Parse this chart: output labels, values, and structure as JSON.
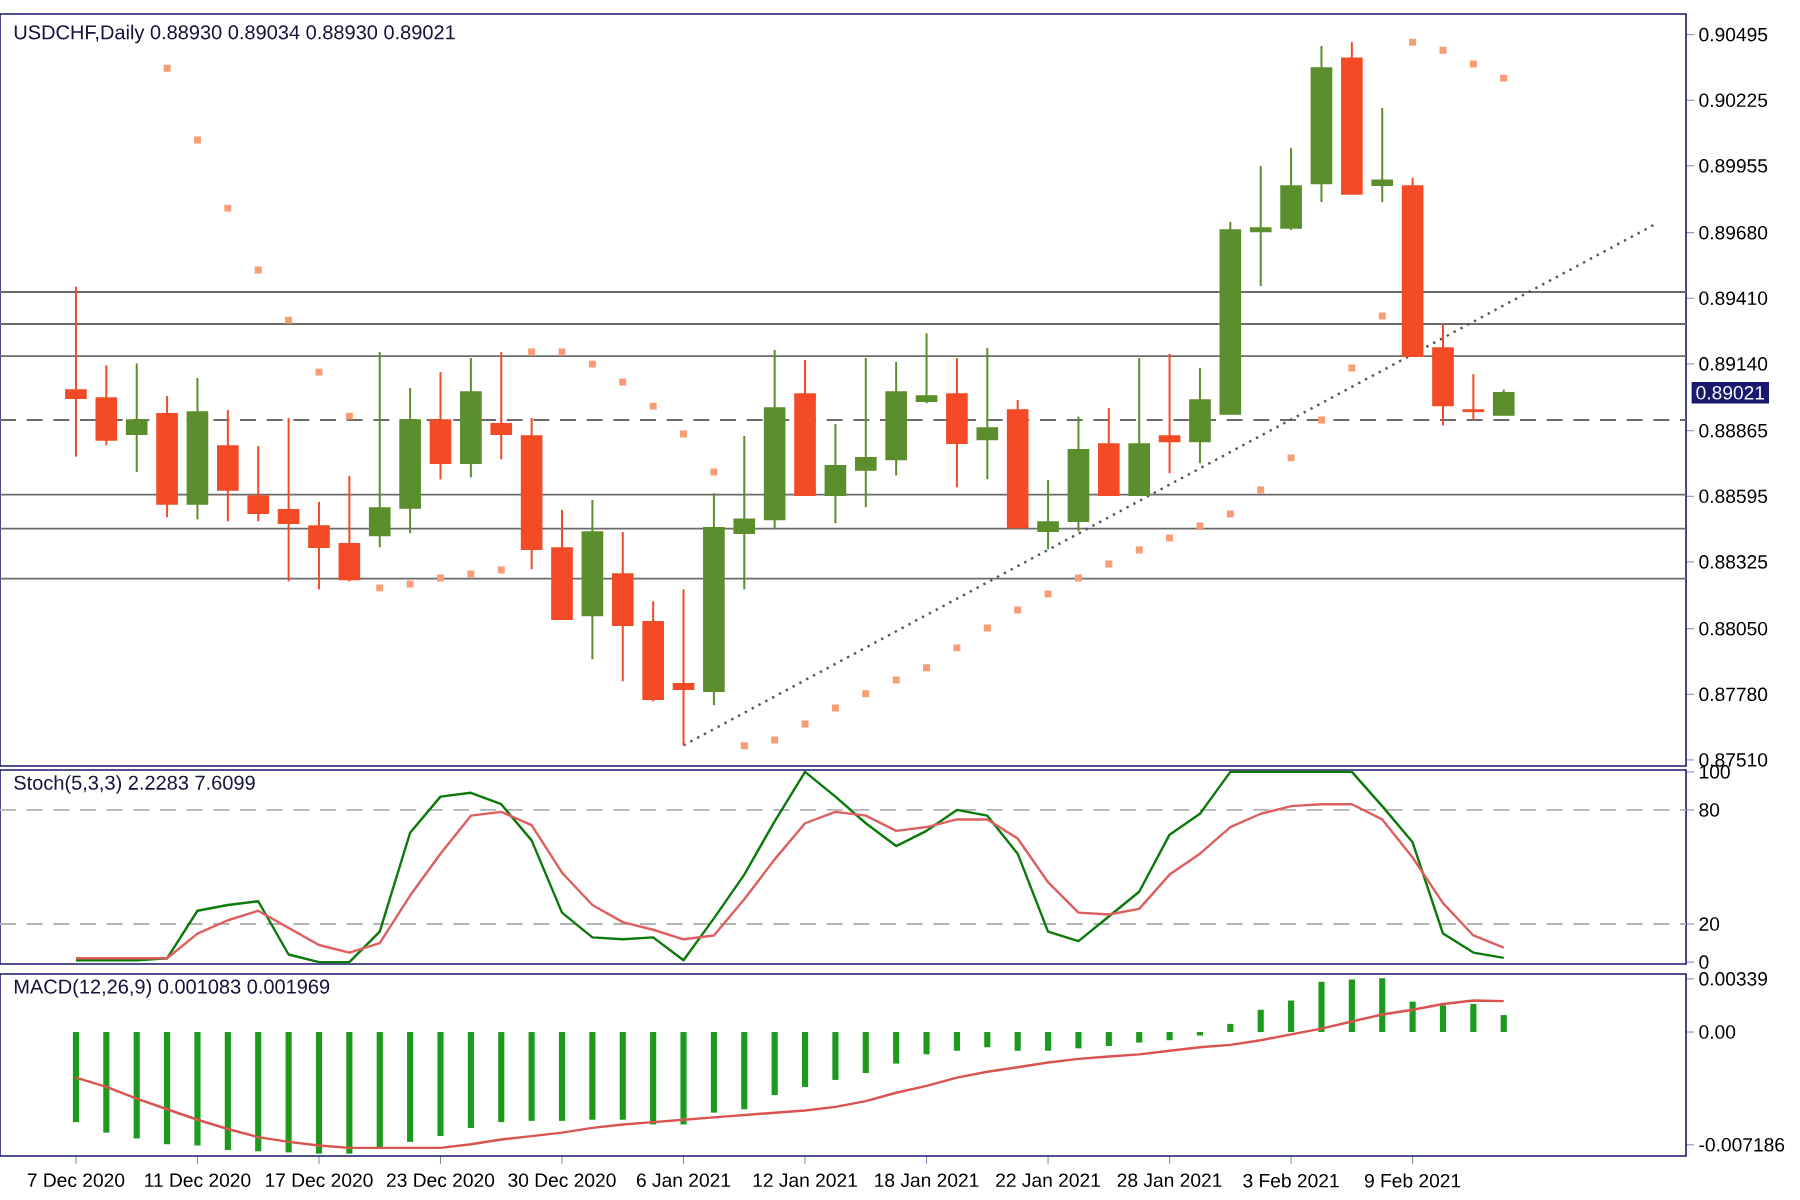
{
  "chart_data": [
    {
      "type": "candlestick",
      "title": "USDCHF,Daily  0.88930 0.89034 0.88930 0.89021",
      "categories": [
        null,
        null,
        null,
        null,
        null,
        null,
        null,
        null,
        null,
        null,
        null,
        null,
        null,
        null,
        null,
        null,
        null,
        null,
        null,
        null,
        null,
        null,
        null,
        null,
        null,
        null,
        null,
        null,
        null,
        null,
        null,
        null,
        null,
        null,
        null,
        null,
        null,
        null,
        null,
        null,
        null,
        null,
        null,
        null,
        null,
        null,
        null,
        null,
        null,
        null,
        null,
        null,
        null
      ],
      "ohlc": [
        [
          0.89032,
          0.89458,
          0.88758,
          0.88999
        ],
        [
          0.88999,
          0.89134,
          0.88805,
          0.88827
        ],
        [
          0.88851,
          0.89142,
          0.88695,
          0.88909
        ],
        [
          0.88934,
          0.89008,
          0.88509,
          0.88563
        ],
        [
          0.88563,
          0.89082,
          0.885,
          0.88942
        ],
        [
          0.88802,
          0.8895,
          0.88492,
          0.88621
        ],
        [
          0.88596,
          0.88802,
          0.88492,
          0.88525
        ],
        [
          0.88539,
          0.88917,
          0.88245,
          0.88484
        ],
        [
          0.88473,
          0.88572,
          0.88212,
          0.88385
        ],
        [
          0.88399,
          0.88679,
          0.88245,
          0.88253
        ],
        [
          0.88434,
          0.89189,
          0.88385,
          0.88547
        ],
        [
          0.88547,
          0.89041,
          0.88443,
          0.88909
        ],
        [
          0.88909,
          0.89106,
          0.88665,
          0.88731
        ],
        [
          0.88731,
          0.89164,
          0.88673,
          0.89024
        ],
        [
          0.88893,
          0.89189,
          0.88747,
          0.88851
        ],
        [
          0.88843,
          0.88917,
          0.88295,
          0.88377
        ],
        [
          0.88382,
          0.88539,
          0.88089,
          0.88089
        ],
        [
          0.88105,
          0.8858,
          0.87924,
          0.88448
        ],
        [
          0.88275,
          0.88448,
          0.87834,
          0.88064
        ],
        [
          0.88078,
          0.88163,
          0.87751,
          0.8776
        ],
        [
          0.87823,
          0.88212,
          0.8757,
          0.87801
        ],
        [
          0.87793,
          0.88607,
          0.87735,
          0.88465
        ],
        [
          0.88443,
          0.88843,
          0.88212,
          0.885
        ],
        [
          0.885,
          0.89197,
          0.88459,
          0.88958
        ],
        [
          0.89016,
          0.89156,
          0.88599,
          0.88599
        ],
        [
          0.88599,
          0.88893,
          0.88484,
          0.8872
        ],
        [
          0.88703,
          0.89164,
          0.8855,
          0.88753
        ],
        [
          0.88747,
          0.89148,
          0.88681,
          0.89024
        ],
        [
          0.88986,
          0.89266,
          0.88978,
          0.89008
        ],
        [
          0.89016,
          0.89164,
          0.88632,
          0.88813
        ],
        [
          0.88829,
          0.89205,
          0.88665,
          0.88876
        ],
        [
          0.8895,
          0.88991,
          0.88467,
          0.88467
        ],
        [
          0.88451,
          0.88662,
          0.88377,
          0.88489
        ],
        [
          0.88492,
          0.88923,
          0.88451,
          0.88786
        ],
        [
          0.8881,
          0.88958,
          0.88599,
          0.88599
        ],
        [
          0.88599,
          0.89164,
          0.88599,
          0.8881
        ],
        [
          0.88843,
          0.89181,
          0.8869,
          0.88821
        ],
        [
          0.88821,
          0.89123,
          0.88731,
          0.88991
        ],
        [
          0.88934,
          0.89724,
          0.88934,
          0.89691
        ],
        [
          0.89685,
          0.89954,
          0.8946,
          0.89699
        ],
        [
          0.89699,
          0.90028,
          0.89691,
          0.89872
        ],
        [
          0.89883,
          0.90448,
          0.89806,
          0.90357
        ],
        [
          0.90398,
          0.90464,
          0.89839,
          0.89839
        ],
        [
          0.89875,
          0.90193,
          0.89806,
          0.89896
        ],
        [
          0.89872,
          0.89905,
          0.89172,
          0.89172
        ],
        [
          0.89205,
          0.89304,
          0.88887,
          0.88969
        ],
        [
          0.8895,
          0.89098,
          0.88909,
          0.88945
        ],
        [
          0.8893,
          0.89034,
          0.8893,
          0.89021
        ],
        null,
        null,
        null,
        null,
        null
      ],
      "colors": [
        "#f24b26",
        "#f24b26",
        "#5b8e2d",
        "#f24b26",
        "#5b8e2d",
        "#f24b26",
        "#f24b26",
        "#f24b26",
        "#f24b26",
        "#f24b26",
        "#5b8e2d",
        "#5b8e2d",
        "#f24b26",
        "#5b8e2d",
        "#f24b26",
        "#f24b26",
        "#f24b26",
        "#5b8e2d",
        "#f24b26",
        "#f24b26",
        "#f24b26",
        "#5b8e2d",
        "#5b8e2d",
        "#5b8e2d",
        "#f24b26",
        "#5b8e2d",
        "#5b8e2d",
        "#5b8e2d",
        "#5b8e2d",
        "#f24b26",
        "#5b8e2d",
        "#f24b26",
        "#5b8e2d",
        "#5b8e2d",
        "#f24b26",
        "#5b8e2d",
        "#f24b26",
        "#5b8e2d",
        "#5b8e2d",
        "#5b8e2d",
        "#5b8e2d",
        "#5b8e2d",
        "#f24b26",
        "#5b8e2d",
        "#f24b26",
        "#f24b26",
        "#f24b26",
        "#5b8e2d",
        null,
        null,
        null,
        null,
        null
      ],
      "series": [
        {
          "type": "scatter",
          "marker": "square",
          "color": "#f79c74",
          "values": [
            null,
            null,
            null,
            0.90357,
            0.90061,
            0.89781,
            0.89526,
            0.8932,
            0.89106,
            0.88925,
            0.88218,
            0.88234,
            0.88259,
            0.88275,
            0.88292,
            0.89189,
            0.89189,
            0.89139,
            0.89065,
            0.88966,
            0.88851,
            0.88695,
            0.87568,
            0.87592,
            0.87658,
            0.87724,
            0.87782,
            0.87839,
            0.87889,
            0.87971,
            0.88053,
            0.88127,
            0.88193,
            0.88259,
            0.88316,
            0.88374,
            0.88423,
            0.88473,
            0.88522,
            0.88621,
            0.88753,
            0.88909,
            0.89123,
            0.89337,
            0.90464,
            0.90431,
            0.90374,
            0.90316,
            null,
            null,
            null,
            null,
            null
          ]
        },
        {
          "type": "line",
          "line_style": "dotted",
          "color": "#555555",
          "values": [
            null,
            null,
            null,
            null,
            null,
            null,
            null,
            null,
            null,
            null,
            null,
            null,
            null,
            null,
            null,
            null,
            null,
            null,
            null,
            null,
            0.8757,
            null,
            null,
            null,
            null,
            null,
            null,
            null,
            null,
            null,
            null,
            null,
            null,
            null,
            null,
            null,
            null,
            null,
            null,
            null,
            null,
            null,
            null,
            null,
            null,
            null,
            null,
            null,
            null,
            null,
            null,
            null,
            0.89716
          ]
        }
      ],
      "ylim": [
        0.87485,
        0.9058
      ],
      "yticks": [
        {
          "value": 0.8751,
          "label": "0.87510"
        },
        {
          "value": 0.8778,
          "label": "0.87780"
        },
        {
          "value": 0.8805,
          "label": "0.88050"
        },
        0.88325,
        0.88595,
        0.88865,
        {
          "value": 0.8914,
          "label": "0.89140"
        },
        {
          "value": 0.8941,
          "label": "0.89410"
        },
        {
          "value": 0.8968,
          "label": "0.89680"
        },
        0.89955,
        0.90225,
        0.90495
      ],
      "tick_labels": "y",
      "ref_lines": [
        {
          "axis": "y",
          "value": 0.89436,
          "color": "#6b6b6b"
        },
        {
          "axis": "y",
          "value": 0.89304,
          "color": "#6b6b6b"
        },
        {
          "axis": "y",
          "value": 0.89172,
          "color": "#6b6b6b"
        },
        {
          "axis": "y",
          "value": 0.88602,
          "color": "#6b6b6b"
        },
        {
          "axis": "y",
          "value": 0.88462,
          "color": "#6b6b6b"
        },
        {
          "axis": "y",
          "value": 0.88256,
          "color": "#6b6b6b"
        },
        {
          "axis": "y",
          "value": 0.88909,
          "color": "#6b6b6b",
          "line_style": "dashed"
        }
      ],
      "annotations": [
        "0.89021"
      ]
    },
    {
      "type": "line",
      "title": "Stoch(5,3,3) 2.2283 7.6099",
      "categories": [
        null,
        null,
        null,
        null,
        null,
        null,
        null,
        null,
        null,
        null,
        null,
        null,
        null,
        null,
        null,
        null,
        null,
        null,
        null,
        null,
        null,
        null,
        null,
        null,
        null,
        null,
        null,
        null,
        null,
        null,
        null,
        null,
        null,
        null,
        null,
        null,
        null,
        null,
        null,
        null,
        null,
        null,
        null,
        null,
        null,
        null,
        null,
        null,
        null,
        null,
        null,
        null,
        null
      ],
      "series": [
        {
          "color": "#0b7a0b",
          "values": [
            1,
            1,
            1,
            2,
            27,
            30,
            32,
            4,
            0,
            0,
            16,
            68,
            87,
            89,
            83,
            64,
            26,
            13,
            12,
            13,
            1,
            23,
            46,
            74,
            100,
            87,
            73,
            61,
            69,
            80,
            77,
            57,
            16,
            11,
            24,
            37,
            67,
            78,
            100,
            100,
            100,
            100,
            100,
            82,
            63,
            15,
            5,
            2.2283,
            null,
            null,
            null,
            null,
            null
          ]
        },
        {
          "color": "#dd5f5f",
          "values": [
            2,
            2,
            2,
            2,
            15,
            22,
            27,
            18,
            9,
            5,
            10,
            35,
            57,
            77,
            79,
            72,
            47,
            30,
            21,
            17,
            12,
            14,
            33,
            54,
            73,
            79,
            77,
            69,
            71,
            75,
            75,
            65,
            42,
            26,
            25,
            28,
            46,
            57,
            71,
            78,
            82,
            83,
            83,
            75,
            55,
            31,
            14,
            7.6099,
            null,
            null,
            null,
            null,
            null
          ]
        }
      ],
      "ylim": [
        -1,
        101
      ],
      "yticks": [
        0,
        20,
        80,
        100
      ],
      "tick_labels": "y",
      "ref_lines": [
        {
          "axis": "y",
          "value": 20,
          "color": "#b4b4b4",
          "line_style": "dashed"
        },
        {
          "axis": "y",
          "value": 80,
          "color": "#b4b4b4",
          "line_style": "dashed"
        }
      ]
    },
    {
      "type": "bar",
      "title": "MACD(12,26,9) 0.001083 0.001969",
      "categories": [
        "7 Dec 2020",
        null,
        null,
        null,
        "11 Dec 2020",
        null,
        null,
        null,
        "17 Dec 2020",
        null,
        null,
        null,
        "23 Dec 2020",
        null,
        null,
        null,
        "30 Dec 2020",
        null,
        null,
        null,
        "6 Jan 2021",
        null,
        null,
        null,
        "12 Jan 2021",
        null,
        null,
        null,
        "18 Jan 2021",
        null,
        null,
        null,
        "22 Jan 2021",
        null,
        null,
        null,
        "28 Jan 2021",
        null,
        null,
        null,
        "3 Feb 2021",
        null,
        null,
        null,
        "9 Feb 2021",
        null,
        null,
        null,
        null,
        null,
        null,
        null,
        null
      ],
      "series": [
        {
          "color": "#1c9a1c",
          "values": [
            -0.00574,
            -0.00641,
            -0.00678,
            -0.00715,
            -0.00723,
            -0.00752,
            -0.0076,
            -0.00767,
            -0.00775,
            -0.00775,
            -0.00738,
            -0.007,
            -0.00663,
            -0.00611,
            -0.00574,
            -0.00566,
            -0.00566,
            -0.00559,
            -0.00559,
            -0.00589,
            -0.00589,
            -0.00514,
            -0.00492,
            -0.00402,
            -0.0035,
            -0.00305,
            -0.00261,
            -0.00201,
            -0.00142,
            -0.00119,
            -0.00097,
            -0.00119,
            -0.00119,
            -0.00104,
            -0.00089,
            -0.00067,
            -0.00052,
            -0.00022,
            0.00052,
            0.00142,
            0.00201,
            0.0032,
            0.00335,
            0.00343,
            0.00194,
            0.00171,
            0.00179,
            0.001083,
            null,
            null,
            null,
            null,
            null
          ]
        },
        {
          "type": "line",
          "color": "#d9534f",
          "values": [
            -0.0029,
            -0.0035,
            -0.00425,
            -0.00492,
            -0.00559,
            -0.00618,
            -0.0067,
            -0.007,
            -0.00723,
            -0.00738,
            -0.00738,
            -0.00738,
            -0.00738,
            -0.00715,
            -0.00685,
            -0.00663,
            -0.00641,
            -0.00611,
            -0.00589,
            -0.00574,
            -0.00559,
            -0.00544,
            -0.00529,
            -0.00514,
            -0.005,
            -0.00477,
            -0.0044,
            -0.00387,
            -0.00343,
            -0.0029,
            -0.00253,
            -0.00224,
            -0.00194,
            -0.00171,
            -0.00156,
            -0.00142,
            -0.00119,
            -0.00097,
            -0.00082,
            -0.00052,
            -0.00015,
            0.00022,
            0.00067,
            0.00112,
            0.00142,
            0.00179,
            0.00201,
            0.001969,
            null,
            null,
            null,
            null,
            null
          ]
        }
      ],
      "ylim": [
        -0.0079,
        0.0037
      ],
      "yticks": [
        0.00339,
        {
          "value": 0,
          "label": "0.00"
        },
        -0.007186
      ]
    }
  ]
}
